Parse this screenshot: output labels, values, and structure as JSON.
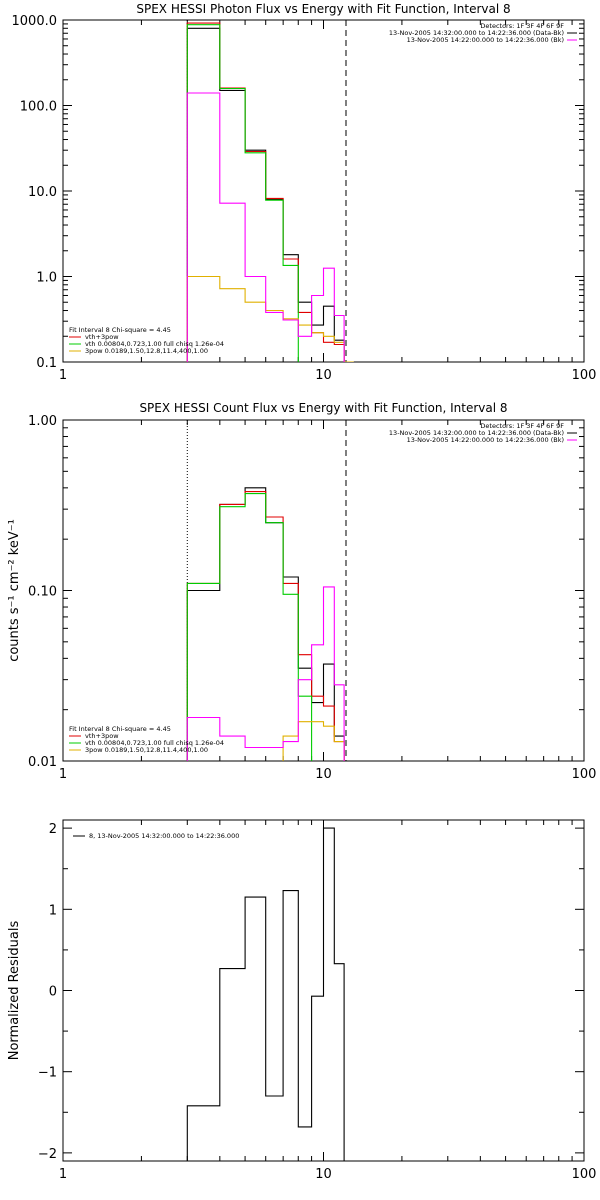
{
  "chart_data": [
    {
      "type": "line",
      "title": "SPEX HESSI Photon Flux vs Energy with Fit Function, Interval 8",
      "xscale": "log",
      "yscale": "log",
      "xlim": [
        1,
        100
      ],
      "ylim": [
        0.1,
        1000
      ],
      "xticks": [
        1,
        10,
        100
      ],
      "xtick_labels": [
        "1",
        "10",
        "100"
      ],
      "yticks": [
        0.1,
        1,
        10,
        100,
        1000
      ],
      "ytick_labels": [
        "0.1",
        "1.0",
        "10.0",
        "100.0",
        "1000.0"
      ],
      "xlabel": "",
      "ylabel": "",
      "info_text": [
        "Detectors: 1F 3F 4F 6F 9F",
        "13-Nov-2005 14:32:00.000 to 14:22:36.000 (Data-Bk)",
        "13-Nov-2005 14:22:00.000 to 14:22:36.000 (Bk)"
      ],
      "info_colors": [
        "#000000",
        "#ff00ff"
      ],
      "fit_text": "Fit Interval 8   Chi-square = 4.45",
      "legend": [
        {
          "label": "vth+3pow",
          "color": "#e00000"
        },
        {
          "label": "vth 0.00804,0.723,1.00   full chisq 1.26e-04",
          "color": "#00cc00"
        },
        {
          "label": "3pow 0.0189,1.50,12.8,11.4,400,1.00",
          "color": "#e0b000"
        }
      ],
      "vlines": [
        {
          "x": 3.0,
          "style": "dotted"
        },
        {
          "x": 12.2,
          "style": "dashed"
        }
      ],
      "edges": [
        3.0,
        4.0,
        5.0,
        6.0,
        7.0,
        8.0,
        9.0,
        10.0,
        11.0,
        12.0,
        13.0
      ],
      "series": [
        {
          "name": "Data-Bk",
          "color": "#000000",
          "values": [
            800,
            150,
            30,
            8,
            1.8,
            0.5,
            0.27,
            0.45,
            0.18,
            null
          ]
        },
        {
          "name": "vth+3pow",
          "color": "#e00000",
          "values": [
            920,
            160,
            29,
            8.2,
            1.6,
            0.38,
            0.22,
            0.17,
            0.16,
            0.1
          ]
        },
        {
          "name": "vth",
          "color": "#00cc00",
          "values": [
            880,
            158,
            28,
            7.8,
            1.35,
            0.05,
            null,
            null,
            null,
            null
          ]
        },
        {
          "name": "3pow",
          "color": "#e0b000",
          "values": [
            1.0,
            0.72,
            0.5,
            0.4,
            0.32,
            0.27,
            0.22,
            0.2,
            0.17,
            0.1
          ]
        },
        {
          "name": "Bk",
          "color": "#ff00ff",
          "values": [
            140,
            7.2,
            1.0,
            0.38,
            0.31,
            0.2,
            0.6,
            1.25,
            0.35,
            null
          ]
        }
      ]
    },
    {
      "type": "line",
      "title": "SPEX HESSI Count Flux vs Energy with Fit Function, Interval 8",
      "xscale": "log",
      "yscale": "log",
      "xlim": [
        1,
        100
      ],
      "ylim": [
        0.01,
        1.0
      ],
      "xticks": [
        1,
        10,
        100
      ],
      "xtick_labels": [
        "1",
        "10",
        "100"
      ],
      "yticks": [
        0.01,
        0.1,
        1.0
      ],
      "ytick_labels": [
        "0.01",
        "0.10",
        "1.00"
      ],
      "xlabel": "",
      "ylabel": "counts s⁻¹ cm⁻² keV⁻¹",
      "info_text": [
        "Detectors: 1F 3F 4F 6F 9F",
        "13-Nov-2005 14:32:00.000 to 14:22:36.000 (Data-Bk)",
        "13-Nov-2005 14:22:00.000 to 14:22:36.000 (Bk)"
      ],
      "info_colors": [
        "#000000",
        "#ff00ff"
      ],
      "fit_text": "Fit Interval 8   Chi-square = 4.45",
      "legend": [
        {
          "label": "vth+3pow",
          "color": "#e00000"
        },
        {
          "label": "vth 0.00804,0.723,1.00   full chisq 1.26e-04",
          "color": "#00cc00"
        },
        {
          "label": "3pow 0.0189,1.50,12.8,11.4,400,1.00",
          "color": "#e0b000"
        }
      ],
      "vlines": [
        {
          "x": 3.0,
          "style": "dotted"
        },
        {
          "x": 12.2,
          "style": "dashed"
        }
      ],
      "edges": [
        3.0,
        4.0,
        5.0,
        6.0,
        7.0,
        8.0,
        9.0,
        10.0,
        11.0,
        12.0,
        13.0
      ],
      "series": [
        {
          "name": "Data-Bk",
          "color": "#000000",
          "values": [
            0.1,
            0.32,
            0.4,
            0.25,
            0.12,
            0.035,
            0.022,
            0.037,
            0.014,
            null
          ]
        },
        {
          "name": "vth+3pow",
          "color": "#e00000",
          "values": [
            0.11,
            0.32,
            0.38,
            0.27,
            0.11,
            0.042,
            0.024,
            0.021,
            0.013,
            0.008
          ]
        },
        {
          "name": "vth",
          "color": "#00cc00",
          "values": [
            0.11,
            0.31,
            0.37,
            0.25,
            0.095,
            0.024,
            0.005,
            null,
            null,
            null
          ]
        },
        {
          "name": "3pow",
          "color": "#e0b000",
          "values": [
            0.008,
            0.009,
            0.009,
            0.009,
            0.014,
            0.017,
            0.017,
            0.016,
            0.013,
            0.009
          ]
        },
        {
          "name": "Bk",
          "color": "#ff00ff",
          "values": [
            0.018,
            0.014,
            0.012,
            0.012,
            0.013,
            0.03,
            0.048,
            0.105,
            0.028,
            null
          ]
        }
      ]
    },
    {
      "type": "line",
      "title": "",
      "xscale": "log",
      "yscale": "linear",
      "xlim": [
        1,
        100
      ],
      "ylim": [
        -2.1,
        2.1
      ],
      "xticks": [
        1,
        10,
        100
      ],
      "xtick_labels": [
        "1",
        "10",
        "100"
      ],
      "yticks": [
        -2,
        -1,
        0,
        1,
        2
      ],
      "ytick_labels": [
        "−2",
        "−1",
        "0",
        "1",
        "2"
      ],
      "xlabel": "",
      "ylabel": "Normalized Residuals",
      "legend": [
        {
          "label": "8, 13-Nov-2005 14:32:00.000 to 14:22:36.000",
          "color": "#000000"
        }
      ],
      "edges": [
        3.0,
        4.0,
        5.0,
        6.0,
        7.0,
        8.0,
        9.0,
        10.0,
        11.0,
        12.0,
        13.0
      ],
      "series": [
        {
          "name": "residuals",
          "color": "#000000",
          "values": [
            -1.42,
            0.27,
            1.15,
            -1.3,
            1.23,
            -1.68,
            -0.07,
            2.0,
            0.33,
            null
          ]
        }
      ]
    }
  ]
}
